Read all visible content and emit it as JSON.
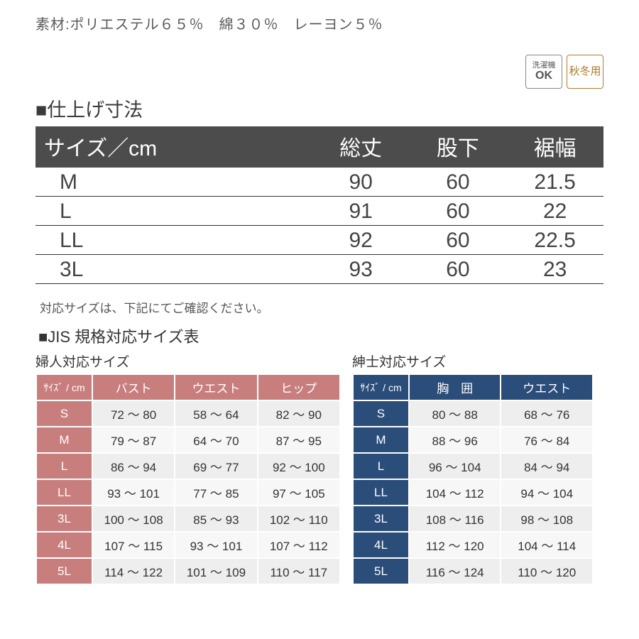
{
  "material": "素材:ポリエステル６５％　綿３０％　レーヨン５％",
  "badges": {
    "wash": {
      "line1": "洗濯機",
      "line2": "OK"
    },
    "season": "秋冬用"
  },
  "dim": {
    "title": "■仕上げ寸法",
    "columns": [
      "サイズ／cm",
      "総丈",
      "股下",
      "裾幅"
    ],
    "rows": [
      [
        "M",
        "90",
        "60",
        "21.5"
      ],
      [
        "L",
        "91",
        "60",
        "22"
      ],
      [
        "LL",
        "92",
        "60",
        "22.5"
      ],
      [
        "3L",
        "93",
        "60",
        "23"
      ]
    ],
    "header_bg": "#4c4c4c",
    "header_fg": "#ffffff",
    "row_border": "#333333",
    "font_size_header": 30,
    "font_size_body": 30
  },
  "note": "対応サイズは、下記にてご確認ください。",
  "jis": {
    "title": "■JIS 規格対応サイズ表",
    "women": {
      "subtitle": "婦人対応サイズ",
      "header_bg": "#c97e7e",
      "columns": [
        "ｻｲｽﾞ / cm",
        "バスト",
        "ウエスト",
        "ヒップ"
      ],
      "rows": [
        [
          "S",
          "72 ～ 80",
          "58 ～ 64",
          "82 ～ 90"
        ],
        [
          "M",
          "79 ～ 87",
          "64 ～ 70",
          "87 ～ 95"
        ],
        [
          "L",
          "86 ～ 94",
          "69 ～ 77",
          "92 ～ 100"
        ],
        [
          "LL",
          "93 ～ 101",
          "77 ～ 85",
          "97 ～ 105"
        ],
        [
          "3L",
          "100 ～ 108",
          "85 ～ 93",
          "102 ～ 110"
        ],
        [
          "4L",
          "107 ～ 115",
          "93 ～ 101",
          "107 ～ 112"
        ],
        [
          "5L",
          "114 ～ 122",
          "101 ～ 109",
          "110 ～ 117"
        ]
      ]
    },
    "men": {
      "subtitle": "紳士対応サイズ",
      "header_bg": "#2b4d7a",
      "columns": [
        "ｻｲｽﾞ / cm",
        "胸　囲",
        "ウエスト"
      ],
      "rows": [
        [
          "S",
          "80 ～ 88",
          "68 ～ 76"
        ],
        [
          "M",
          "88 ～ 96",
          "76 ～ 84"
        ],
        [
          "L",
          "96 ～ 104",
          "84 ～ 94"
        ],
        [
          "LL",
          "104 ～ 112",
          "94 ～ 104"
        ],
        [
          "3L",
          "108 ～ 116",
          "98 ～ 108"
        ],
        [
          "4L",
          "112 ～ 120",
          "104 ～ 114"
        ],
        [
          "5L",
          "116 ～ 124",
          "110 ～ 120"
        ]
      ]
    },
    "cell_bg_odd": "#eeeeee",
    "cell_bg_even": "#f7f7f7",
    "font_size": 17
  }
}
